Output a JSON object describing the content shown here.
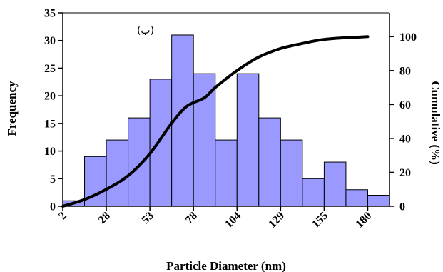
{
  "chart_data": {
    "type": "bar",
    "title": "",
    "annotation": "(ب)",
    "xlabel": "Particle Diameter (nm)",
    "ylabel": "Frequency",
    "y2label": "Cumulative (%)",
    "x_tick_labels": [
      "2",
      "28",
      "53",
      "78",
      "104",
      "129",
      "155",
      "180"
    ],
    "ylim": [
      0,
      35
    ],
    "yticks": [
      0,
      5,
      10,
      15,
      20,
      25,
      30,
      35
    ],
    "y2lim": [
      0,
      114
    ],
    "y2ticks": [
      0,
      20,
      40,
      60,
      80,
      100
    ],
    "grid": false,
    "series": [
      {
        "type": "bar",
        "color": "#9999ff",
        "values": [
          1,
          9,
          12,
          16,
          23,
          31,
          24,
          12,
          24,
          16,
          12,
          5,
          8,
          3,
          2
        ]
      },
      {
        "type": "line",
        "axis": "right",
        "color": "#000000",
        "points": [
          [
            0.0,
            0
          ],
          [
            1.0,
            4
          ],
          [
            2.0,
            10
          ],
          [
            3.0,
            18
          ],
          [
            4.0,
            31
          ],
          [
            5.0,
            49
          ],
          [
            5.7,
            59
          ],
          [
            6.5,
            64
          ],
          [
            7.0,
            70
          ],
          [
            8.0,
            80
          ],
          [
            9.0,
            88
          ],
          [
            10.0,
            93
          ],
          [
            11.0,
            96
          ],
          [
            11.8,
            98
          ],
          [
            12.5,
            99
          ],
          [
            14.0,
            100
          ]
        ]
      }
    ]
  }
}
